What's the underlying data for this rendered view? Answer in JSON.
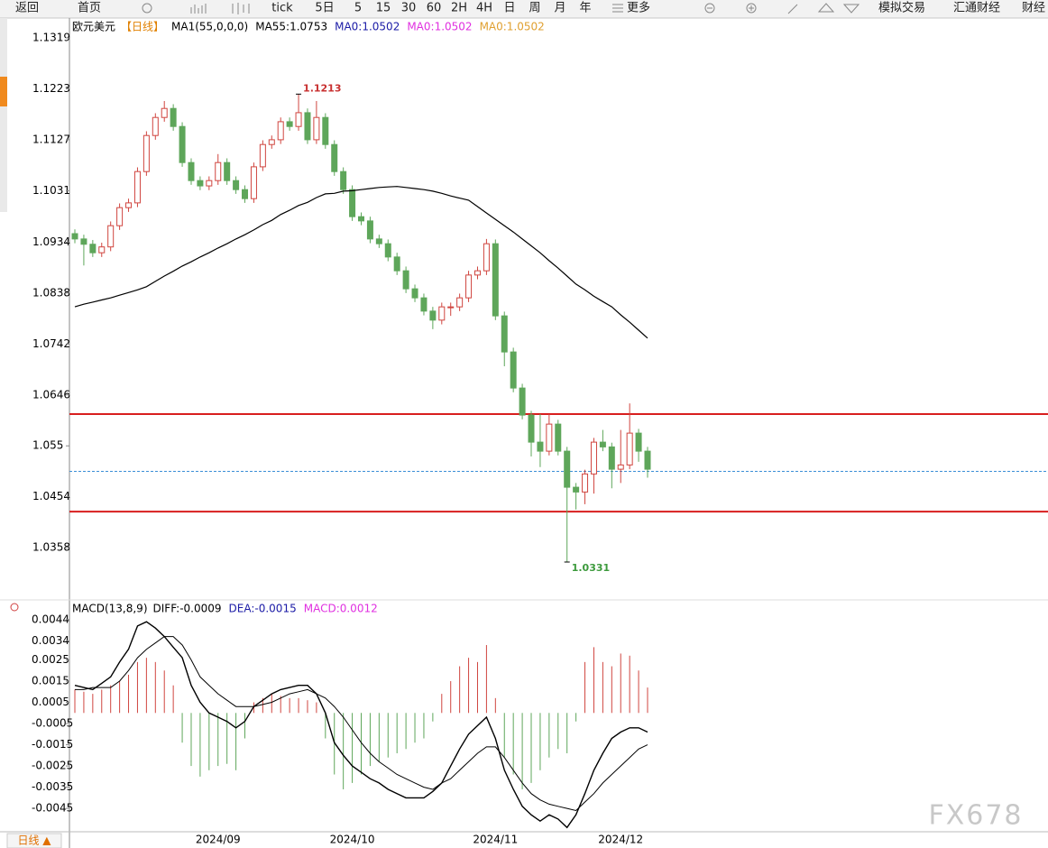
{
  "toolbar": [
    "返回",
    "首页",
    "tick",
    "5日",
    "5",
    "15",
    "30",
    "60",
    "2H",
    "4H",
    "日",
    "周",
    "月",
    "年",
    "更多",
    "模拟交易",
    "汇通财经",
    "财经"
  ],
  "footer_tab": "日线 ▲",
  "watermark": "FX678",
  "chart_data": [
    {
      "type": "candlestick",
      "title": "欧元美元",
      "legend": [
        {
          "text": "【日线】",
          "color": "#e08000"
        },
        {
          "text": "MA1(55,0,0,0)",
          "color": "#000000"
        },
        {
          "text": "MA55:1.0753",
          "color": "#000000"
        },
        {
          "text": "MA0:1.0502",
          "color": "#1a1aa6"
        },
        {
          "text": "MA0:1.0502",
          "color": "#e030e0"
        },
        {
          "text": "MA0:1.0502",
          "color": "#e0a030"
        }
      ],
      "categories": [
        null,
        null,
        null,
        null,
        null,
        null,
        null,
        null,
        null,
        null,
        null,
        null,
        null,
        null,
        null,
        null,
        "2024/09",
        null,
        null,
        null,
        null,
        null,
        null,
        null,
        null,
        null,
        null,
        null,
        null,
        null,
        null,
        "2024/10",
        null,
        null,
        null,
        null,
        null,
        null,
        null,
        null,
        null,
        null,
        null,
        null,
        null,
        null,
        null,
        "2024/11",
        null,
        null,
        null,
        null,
        null,
        null,
        null,
        null,
        null,
        null,
        null,
        null,
        null,
        "2024/12",
        null,
        null,
        null
      ],
      "open": [
        1.095,
        1.094,
        1.093,
        1.0914,
        1.0925,
        1.0965,
        1.0999,
        1.1008,
        1.1067,
        1.1135,
        1.1169,
        1.1186,
        1.1152,
        1.1084,
        1.105,
        1.104,
        1.105,
        1.1084,
        1.105,
        1.1033,
        1.1016,
        1.1076,
        1.1118,
        1.1127,
        1.1161,
        1.1152,
        1.1178,
        1.1127,
        1.1169,
        1.1118,
        1.1067,
        1.1033,
        1.0982,
        1.0974,
        1.094,
        1.0931,
        1.0906,
        1.088,
        1.0846,
        1.0829,
        1.0804,
        1.0787,
        1.0812,
        1.0812,
        1.0829,
        1.0872,
        1.088,
        1.0931,
        1.0795,
        1.0727,
        1.0659,
        1.0608,
        1.0557,
        1.054,
        1.0591,
        1.054,
        1.0472,
        1.0463,
        1.0497,
        1.0557,
        1.0548,
        1.0506,
        1.0514,
        1.0574,
        1.054
      ],
      "high": [
        1.0958,
        1.0948,
        1.0938,
        1.0933,
        1.0973,
        1.1007,
        1.1016,
        1.1075,
        1.1143,
        1.1177,
        1.12,
        1.1194,
        1.116,
        1.1092,
        1.1058,
        1.1058,
        1.11,
        1.1092,
        1.1058,
        1.1041,
        1.1084,
        1.1126,
        1.1135,
        1.1169,
        1.1169,
        1.1213,
        1.1186,
        1.12,
        1.1177,
        1.1126,
        1.1075,
        1.1041,
        1.099,
        1.0982,
        1.0948,
        1.0939,
        1.0914,
        1.0888,
        1.0854,
        1.0837,
        1.0812,
        1.082,
        1.082,
        1.0837,
        1.088,
        1.0888,
        1.094,
        1.0939,
        1.0803,
        1.0735,
        1.0667,
        1.0616,
        1.061,
        1.061,
        1.0599,
        1.0548,
        1.048,
        1.0505,
        1.0565,
        1.058,
        1.0556,
        1.058,
        1.063,
        1.0582,
        1.0548
      ],
      "low": [
        1.0932,
        1.089,
        1.0906,
        1.0906,
        1.0917,
        1.0957,
        1.0991,
        1.1,
        1.1059,
        1.1127,
        1.1161,
        1.1144,
        1.1076,
        1.1042,
        1.1032,
        1.1032,
        1.1042,
        1.1042,
        1.1025,
        1.1008,
        1.1008,
        1.1068,
        1.111,
        1.1119,
        1.1144,
        1.1144,
        1.1119,
        1.1119,
        1.111,
        1.1059,
        1.1025,
        1.0974,
        1.0966,
        1.0932,
        1.0923,
        1.0898,
        1.0872,
        1.0838,
        1.0821,
        1.0796,
        1.077,
        1.0779,
        1.0795,
        1.0804,
        1.0821,
        1.0864,
        1.0872,
        1.0787,
        1.07,
        1.0651,
        1.06,
        1.053,
        1.051,
        1.0532,
        1.0532,
        1.0331,
        1.043,
        1.044,
        1.046,
        1.054,
        1.047,
        1.048,
        1.0506,
        1.052,
        1.049
      ],
      "close": [
        1.094,
        1.093,
        1.0914,
        1.0925,
        1.0965,
        1.0999,
        1.1008,
        1.1067,
        1.1135,
        1.1169,
        1.1186,
        1.1152,
        1.1084,
        1.105,
        1.104,
        1.105,
        1.1084,
        1.105,
        1.1033,
        1.1016,
        1.1076,
        1.1118,
        1.1127,
        1.1161,
        1.1152,
        1.1178,
        1.1127,
        1.1169,
        1.1118,
        1.1067,
        1.1033,
        1.0982,
        1.0974,
        1.094,
        1.0931,
        1.0906,
        1.088,
        1.0846,
        1.0829,
        1.0804,
        1.0787,
        1.0812,
        1.0812,
        1.0829,
        1.0872,
        1.088,
        1.0931,
        1.0795,
        1.0727,
        1.0659,
        1.0608,
        1.0557,
        1.054,
        1.0591,
        1.054,
        1.0472,
        1.0463,
        1.0497,
        1.0557,
        1.0548,
        1.0506,
        1.0514,
        1.0574,
        1.054,
        1.0506
      ],
      "up_color": "#d0453f",
      "down_color": "#5ea65a",
      "series": [
        {
          "color": "#000000",
          "values": [
            1.0812,
            1.0817,
            1.0821,
            1.0825,
            1.0829,
            1.0834,
            1.0839,
            1.0844,
            1.085,
            1.086,
            1.087,
            1.0879,
            1.0889,
            1.0897,
            1.0906,
            1.0914,
            1.0923,
            1.0931,
            1.094,
            1.0948,
            1.0957,
            1.0967,
            1.0975,
            1.0986,
            1.0994,
            1.1003,
            1.1009,
            1.1018,
            1.1025,
            1.1026,
            1.103,
            1.1031,
            1.1033,
            1.1035,
            1.1037,
            1.1038,
            1.1039,
            1.1037,
            1.1035,
            1.1033,
            1.103,
            1.1026,
            1.1021,
            1.1017,
            1.1013,
            1.1001,
            1.0989,
            1.0977,
            1.0965,
            1.0953,
            1.094,
            1.0927,
            1.0914,
            1.0899,
            1.0885,
            1.087,
            1.0855,
            1.0844,
            1.0832,
            1.0822,
            1.0812,
            1.0797,
            1.0783,
            1.0768,
            1.0753
          ]
        }
      ],
      "hlines": [
        {
          "value": 1.061,
          "color": "#d81e1e",
          "dashed": false
        },
        {
          "value": 1.0426,
          "color": "#d81e1e",
          "dashed": false
        },
        {
          "value": 1.0502,
          "color": "#3b8fd6",
          "dashed": true
        }
      ],
      "ylim": [
        1.0263,
        1.1353
      ],
      "yticks": [
        1.1319,
        1.1223,
        1.1127,
        1.1031,
        1.0934,
        1.0838,
        1.0742,
        1.0646,
        1.055,
        1.0454,
        1.0358
      ]
    },
    {
      "type": "macd",
      "title": "MACD(13,8,9)",
      "legend": [
        {
          "text": "DIFF:-0.0009",
          "color": "#000000"
        },
        {
          "text": "DEA:-0.0015",
          "color": "#1a1aa6"
        },
        {
          "text": "MACD:0.0012",
          "color": "#e030e0"
        }
      ],
      "diff": {
        "color": "#000000",
        "values": [
          0.0013,
          0.0012,
          0.0011,
          0.0014,
          0.0017,
          0.0024,
          0.003,
          0.0041,
          0.0043,
          0.004,
          0.0036,
          0.0031,
          0.0026,
          0.0013,
          0.0005,
          0,
          -0.0002,
          -0.0004,
          -0.0007,
          -0.0004,
          0.0003,
          0.0006,
          0.0009,
          0.0011,
          0.0012,
          0.0013,
          0.0013,
          0.0009,
          0,
          -0.0014,
          -0.002,
          -0.0025,
          -0.0028,
          -0.0031,
          -0.0033,
          -0.0036,
          -0.0038,
          -0.004,
          -0.004,
          -0.004,
          -0.0037,
          -0.0033,
          -0.0025,
          -0.0017,
          -0.001,
          -0.0006,
          -0.0002,
          -0.0012,
          -0.0027,
          -0.0036,
          -0.0044,
          -0.0048,
          -0.0051,
          -0.0048,
          -0.005,
          -0.0054,
          -0.0048,
          -0.0038,
          -0.0027,
          -0.0019,
          -0.0012,
          -0.0009,
          -0.0007,
          -0.0007,
          -0.0009
        ]
      },
      "dea": {
        "color": "#000000",
        "values": [
          0.0011,
          0.0011,
          0.0012,
          0.0012,
          0.0012,
          0.0015,
          0.002,
          0.0026,
          0.003,
          0.0033,
          0.0036,
          0.0036,
          0.0032,
          0.0025,
          0.0017,
          0.0013,
          0.0009,
          0.0006,
          0.0003,
          0.0003,
          0.0003,
          0.0004,
          0.0005,
          0.0007,
          0.0009,
          0.001,
          0.0011,
          0.0009,
          0.0007,
          0.0003,
          -0.0002,
          -0.0008,
          -0.0014,
          -0.0019,
          -0.0023,
          -0.0026,
          -0.0029,
          -0.0031,
          -0.0033,
          -0.0035,
          -0.0036,
          -0.0033,
          -0.0031,
          -0.0027,
          -0.0023,
          -0.0019,
          -0.0016,
          -0.0016,
          -0.0021,
          -0.0027,
          -0.0033,
          -0.0038,
          -0.0041,
          -0.0043,
          -0.0044,
          -0.0045,
          -0.0046,
          -0.0042,
          -0.0038,
          -0.0033,
          -0.0029,
          -0.0025,
          -0.0021,
          -0.0017,
          -0.0015
        ]
      },
      "hist": {
        "up_color": "#d0453f",
        "down_color": "#5ea65a",
        "values": [
          0.0011,
          0.001,
          0.0009,
          0.0011,
          0.0013,
          0.0015,
          0.0018,
          0.0024,
          0.0026,
          0.0024,
          0.002,
          0.0013,
          -0.0014,
          -0.0025,
          -0.003,
          -0.0027,
          -0.0025,
          -0.0024,
          -0.0027,
          -0.0012,
          0.0005,
          0.0007,
          0.0009,
          0.0008,
          0.0007,
          0.0007,
          0.0006,
          0.0005,
          -0.0012,
          -0.0029,
          -0.0036,
          -0.0033,
          -0.0029,
          -0.0025,
          -0.0023,
          -0.0021,
          -0.0019,
          -0.0017,
          -0.0014,
          -0.0012,
          -0.0004,
          0.0009,
          0.0015,
          0.0022,
          0.0026,
          0.0024,
          0.0032,
          0.0007,
          -0.0021,
          -0.0029,
          -0.0036,
          -0.0033,
          -0.0027,
          -0.0021,
          -0.0017,
          -0.0019,
          -0.0004,
          0.0024,
          0.0031,
          0.0024,
          0.0022,
          0.0028,
          0.0027,
          0.002,
          0.0012
        ]
      },
      "ylim": [
        -0.0056,
        0.0052
      ],
      "yticks": [
        0.0044,
        0.0034,
        0.0025,
        0.0015,
        0.0005,
        -0.0005,
        -0.0015,
        -0.0025,
        -0.0035,
        -0.0045
      ]
    }
  ]
}
